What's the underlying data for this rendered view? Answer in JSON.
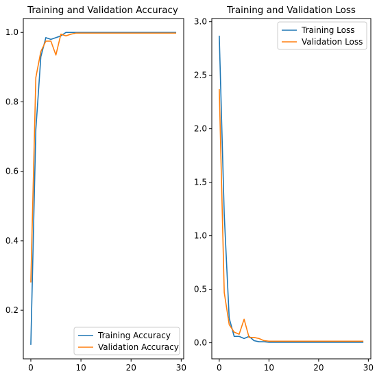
{
  "chart_data": [
    {
      "type": "line",
      "title": "Training and Validation Accuracy",
      "xlabel": "",
      "ylabel": "",
      "xlim": [
        -1.5,
        30.5
      ],
      "ylim": [
        0.06,
        1.04
      ],
      "x_ticks": [
        0,
        10,
        20,
        30
      ],
      "x_tick_labels": [
        "0",
        "10",
        "20",
        "30"
      ],
      "y_ticks": [
        0.2,
        0.4,
        0.6,
        0.8,
        1.0
      ],
      "y_tick_labels": [
        "0.2",
        "0.4",
        "0.6",
        "0.8",
        "1.0"
      ],
      "legend": "lower-right",
      "grid": false,
      "x": [
        0,
        1,
        2,
        3,
        4,
        5,
        6,
        7,
        8,
        9,
        10,
        11,
        12,
        13,
        14,
        15,
        16,
        17,
        18,
        19,
        20,
        21,
        22,
        23,
        24,
        25,
        26,
        27,
        28,
        29
      ],
      "series": [
        {
          "name": "Training Accuracy",
          "color": "#1f77b4",
          "values": [
            0.1,
            0.72,
            0.93,
            0.985,
            0.98,
            0.985,
            0.99,
            1.0,
            1.0,
            1.0,
            1.0,
            1.0,
            1.0,
            1.0,
            1.0,
            1.0,
            1.0,
            1.0,
            1.0,
            1.0,
            1.0,
            1.0,
            1.0,
            1.0,
            1.0,
            1.0,
            1.0,
            1.0,
            1.0,
            1.0
          ]
        },
        {
          "name": "Validation Accuracy",
          "color": "#ff7f0e",
          "values": [
            0.28,
            0.87,
            0.945,
            0.975,
            0.975,
            0.935,
            0.995,
            0.99,
            0.995,
            0.998,
            0.998,
            0.998,
            0.998,
            0.998,
            0.998,
            0.998,
            0.998,
            0.998,
            0.998,
            0.998,
            0.998,
            0.998,
            0.998,
            0.998,
            0.998,
            0.998,
            0.998,
            0.998,
            0.998,
            0.998
          ]
        }
      ]
    },
    {
      "type": "line",
      "title": "Training and Validation Loss",
      "xlabel": "",
      "ylabel": "",
      "xlim": [
        -1.5,
        30.5
      ],
      "ylim": [
        -0.15,
        3.03
      ],
      "x_ticks": [
        0,
        10,
        20,
        30
      ],
      "x_tick_labels": [
        "0",
        "10",
        "20",
        "30"
      ],
      "y_ticks": [
        0.0,
        0.5,
        1.0,
        1.5,
        2.0,
        2.5,
        3.0
      ],
      "y_tick_labels": [
        "0.0",
        "0.5",
        "1.0",
        "1.5",
        "2.0",
        "2.5",
        "3.0"
      ],
      "legend": "upper-right",
      "grid": false,
      "x": [
        0,
        1,
        2,
        3,
        4,
        5,
        6,
        7,
        8,
        9,
        10,
        11,
        12,
        13,
        14,
        15,
        16,
        17,
        18,
        19,
        20,
        21,
        22,
        23,
        24,
        25,
        26,
        27,
        28,
        29
      ],
      "series": [
        {
          "name": "Training Loss",
          "color": "#1f77b4",
          "values": [
            2.87,
            1.2,
            0.23,
            0.06,
            0.06,
            0.04,
            0.06,
            0.02,
            0.01,
            0.01,
            0.005,
            0.005,
            0.005,
            0.005,
            0.005,
            0.005,
            0.005,
            0.005,
            0.005,
            0.005,
            0.005,
            0.005,
            0.005,
            0.005,
            0.005,
            0.005,
            0.005,
            0.005,
            0.005,
            0.005
          ]
        },
        {
          "name": "Validation Loss",
          "color": "#ff7f0e",
          "values": [
            2.37,
            0.47,
            0.17,
            0.1,
            0.08,
            0.22,
            0.05,
            0.05,
            0.04,
            0.02,
            0.015,
            0.015,
            0.015,
            0.015,
            0.015,
            0.015,
            0.015,
            0.015,
            0.015,
            0.015,
            0.015,
            0.015,
            0.015,
            0.015,
            0.015,
            0.015,
            0.015,
            0.015,
            0.015,
            0.015
          ]
        }
      ]
    }
  ]
}
